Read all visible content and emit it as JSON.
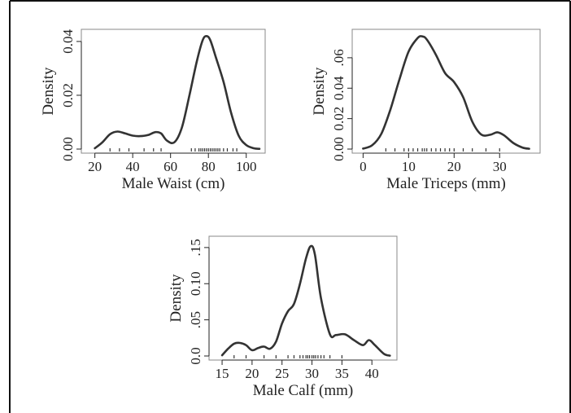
{
  "chart_data": [
    {
      "type": "line",
      "xlabel": "Male Waist (cm)",
      "ylabel": "Density",
      "xlim": [
        15,
        110
      ],
      "ylim": [
        0,
        0.043
      ],
      "x_ticks": [
        20,
        40,
        60,
        80,
        100
      ],
      "y_ticks": [
        0,
        0.02,
        0.04
      ],
      "y_tick_labels": [
        "0.00",
        "0.02",
        "0.04"
      ],
      "series": [
        {
          "x": [
            20,
            24,
            28,
            32,
            36,
            40,
            44,
            48,
            52,
            55,
            58,
            62,
            66,
            70,
            74,
            77,
            79,
            81,
            84,
            88,
            92,
            96,
            100,
            104,
            107
          ],
          "y": [
            0.0003,
            0.0025,
            0.0055,
            0.0065,
            0.0058,
            0.005,
            0.0048,
            0.0052,
            0.0063,
            0.0058,
            0.0032,
            0.0025,
            0.008,
            0.02,
            0.033,
            0.0405,
            0.042,
            0.0405,
            0.034,
            0.025,
            0.0135,
            0.005,
            0.0015,
            0.0003,
            0.0001
          ]
        }
      ],
      "rug": [
        28,
        33,
        38,
        46,
        51,
        55,
        71,
        73,
        75,
        76,
        77,
        78,
        79,
        80,
        81,
        82,
        83,
        84,
        85,
        86,
        88,
        90,
        93,
        95
      ]
    },
    {
      "type": "line",
      "xlabel": "Male Triceps (mm)",
      "ylabel": "Density",
      "xlim": [
        -1.5,
        38
      ],
      "ylim": [
        0,
        0.076
      ],
      "x_ticks": [
        0,
        10,
        20,
        30
      ],
      "y_ticks": [
        0,
        0.02,
        0.04,
        0.06
      ],
      "y_tick_labels": [
        "0.00",
        "0.02",
        "0.04",
        ".06"
      ],
      "series": [
        {
          "x": [
            0,
            2,
            4,
            6,
            8,
            10,
            12,
            13,
            14,
            16,
            18,
            20,
            22,
            24,
            26,
            28,
            29.5,
            31,
            33,
            35,
            36.5
          ],
          "y": [
            0.0003,
            0.0025,
            0.01,
            0.026,
            0.046,
            0.064,
            0.073,
            0.074,
            0.072,
            0.062,
            0.05,
            0.044,
            0.034,
            0.018,
            0.0095,
            0.0095,
            0.011,
            0.009,
            0.004,
            0.001,
            0.0002
          ]
        }
      ],
      "rug": [
        5,
        7,
        9,
        10,
        11,
        12,
        13,
        13.5,
        14,
        15,
        16,
        17,
        18,
        19,
        20,
        22,
        24,
        27,
        30
      ]
    },
    {
      "type": "line",
      "xlabel": "Male Calf (mm)",
      "ylabel": "Density",
      "xlim": [
        13.5,
        43.5
      ],
      "ylim": [
        0,
        0.16
      ],
      "x_ticks": [
        15,
        20,
        25,
        30,
        35,
        40
      ],
      "y_ticks": [
        0,
        0.05,
        0.1,
        0.15
      ],
      "y_tick_labels": [
        "0.0",
        ".05",
        "0.10",
        ".15"
      ],
      "series": [
        {
          "x": [
            15,
            16,
            17,
            18,
            19,
            20,
            21,
            22,
            23,
            24,
            25,
            26,
            27,
            28,
            29,
            29.8,
            30.5,
            31.5,
            33,
            34,
            35.5,
            37,
            38.5,
            39.5,
            40.5,
            42,
            43
          ],
          "y": [
            0.001,
            0.01,
            0.017,
            0.018,
            0.015,
            0.008,
            0.011,
            0.013,
            0.01,
            0.02,
            0.045,
            0.062,
            0.072,
            0.1,
            0.135,
            0.152,
            0.14,
            0.08,
            0.03,
            0.029,
            0.03,
            0.022,
            0.015,
            0.022,
            0.015,
            0.003,
            0.0005
          ]
        }
      ],
      "rug": [
        17,
        19,
        22,
        24,
        26,
        27,
        28,
        28.5,
        29,
        29.3,
        29.6,
        30,
        30.3,
        30.6,
        31,
        31.5,
        32,
        33,
        35
      ]
    }
  ]
}
